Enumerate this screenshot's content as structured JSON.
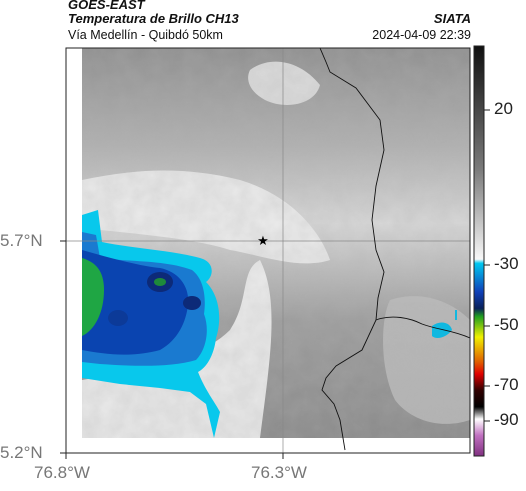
{
  "header": {
    "satellite": "GOES-EAST",
    "product": "Temperatura de Brillo CH13",
    "region": "Vía Medellín - Quibdó 50km",
    "source": "SIATA",
    "datetime": "2024-04-09 22:39"
  },
  "axes": {
    "lat_labels": [
      "5.7°N",
      "5.2°N"
    ],
    "lon_labels": [
      "76.8°W",
      "76.3°W"
    ]
  },
  "colorbar": {
    "ticks": [
      "20",
      "-30",
      "-50",
      "-70",
      "-90"
    ],
    "colors": [
      "#101010",
      "#808080",
      "#ffffff",
      "#00b8e8",
      "#0a2aa0",
      "#1fa01f",
      "#f0f000",
      "#e00000",
      "#000000",
      "#ffffff",
      "#a040a0"
    ]
  },
  "marker": {
    "icon": "star-icon"
  }
}
